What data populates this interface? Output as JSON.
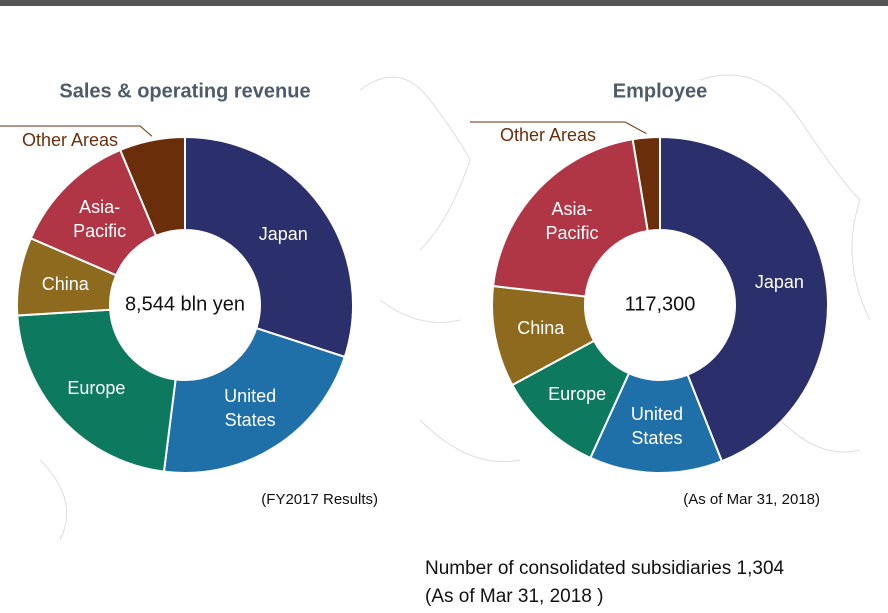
{
  "chart_data": [
    {
      "type": "donut",
      "title": "Sales & operating  revenue",
      "center_label": "8,544 bln yen",
      "note": "(FY2017 Results)",
      "categories": [
        "Japan",
        "United States",
        "Europe",
        "China",
        "Asia-Pacific",
        "Other Areas"
      ],
      "values": [
        30,
        22,
        22,
        7.5,
        12.2,
        6.3
      ],
      "colors": [
        "#2b2f6b",
        "#1f6fa8",
        "#0d7a5f",
        "#8e6a1e",
        "#b03646",
        "#6b2e0b"
      ]
    },
    {
      "type": "donut",
      "title": "Employee",
      "center_label": "117,300",
      "note": "(As of Mar 31, 2018)",
      "categories": [
        "Japan",
        "United States",
        "Europe",
        "China",
        "Asia-Pacific",
        "Other Areas"
      ],
      "values": [
        44,
        12.8,
        10.3,
        9.7,
        20.6,
        2.6
      ],
      "colors": [
        "#2b2f6b",
        "#1f6fa8",
        "#0d7a5f",
        "#8e6a1e",
        "#b03646",
        "#6b2e0b"
      ]
    }
  ],
  "footer": {
    "line1": "Number of consolidated subsidiaries  1,304",
    "line2": "(As of Mar 31, 2018 )"
  }
}
